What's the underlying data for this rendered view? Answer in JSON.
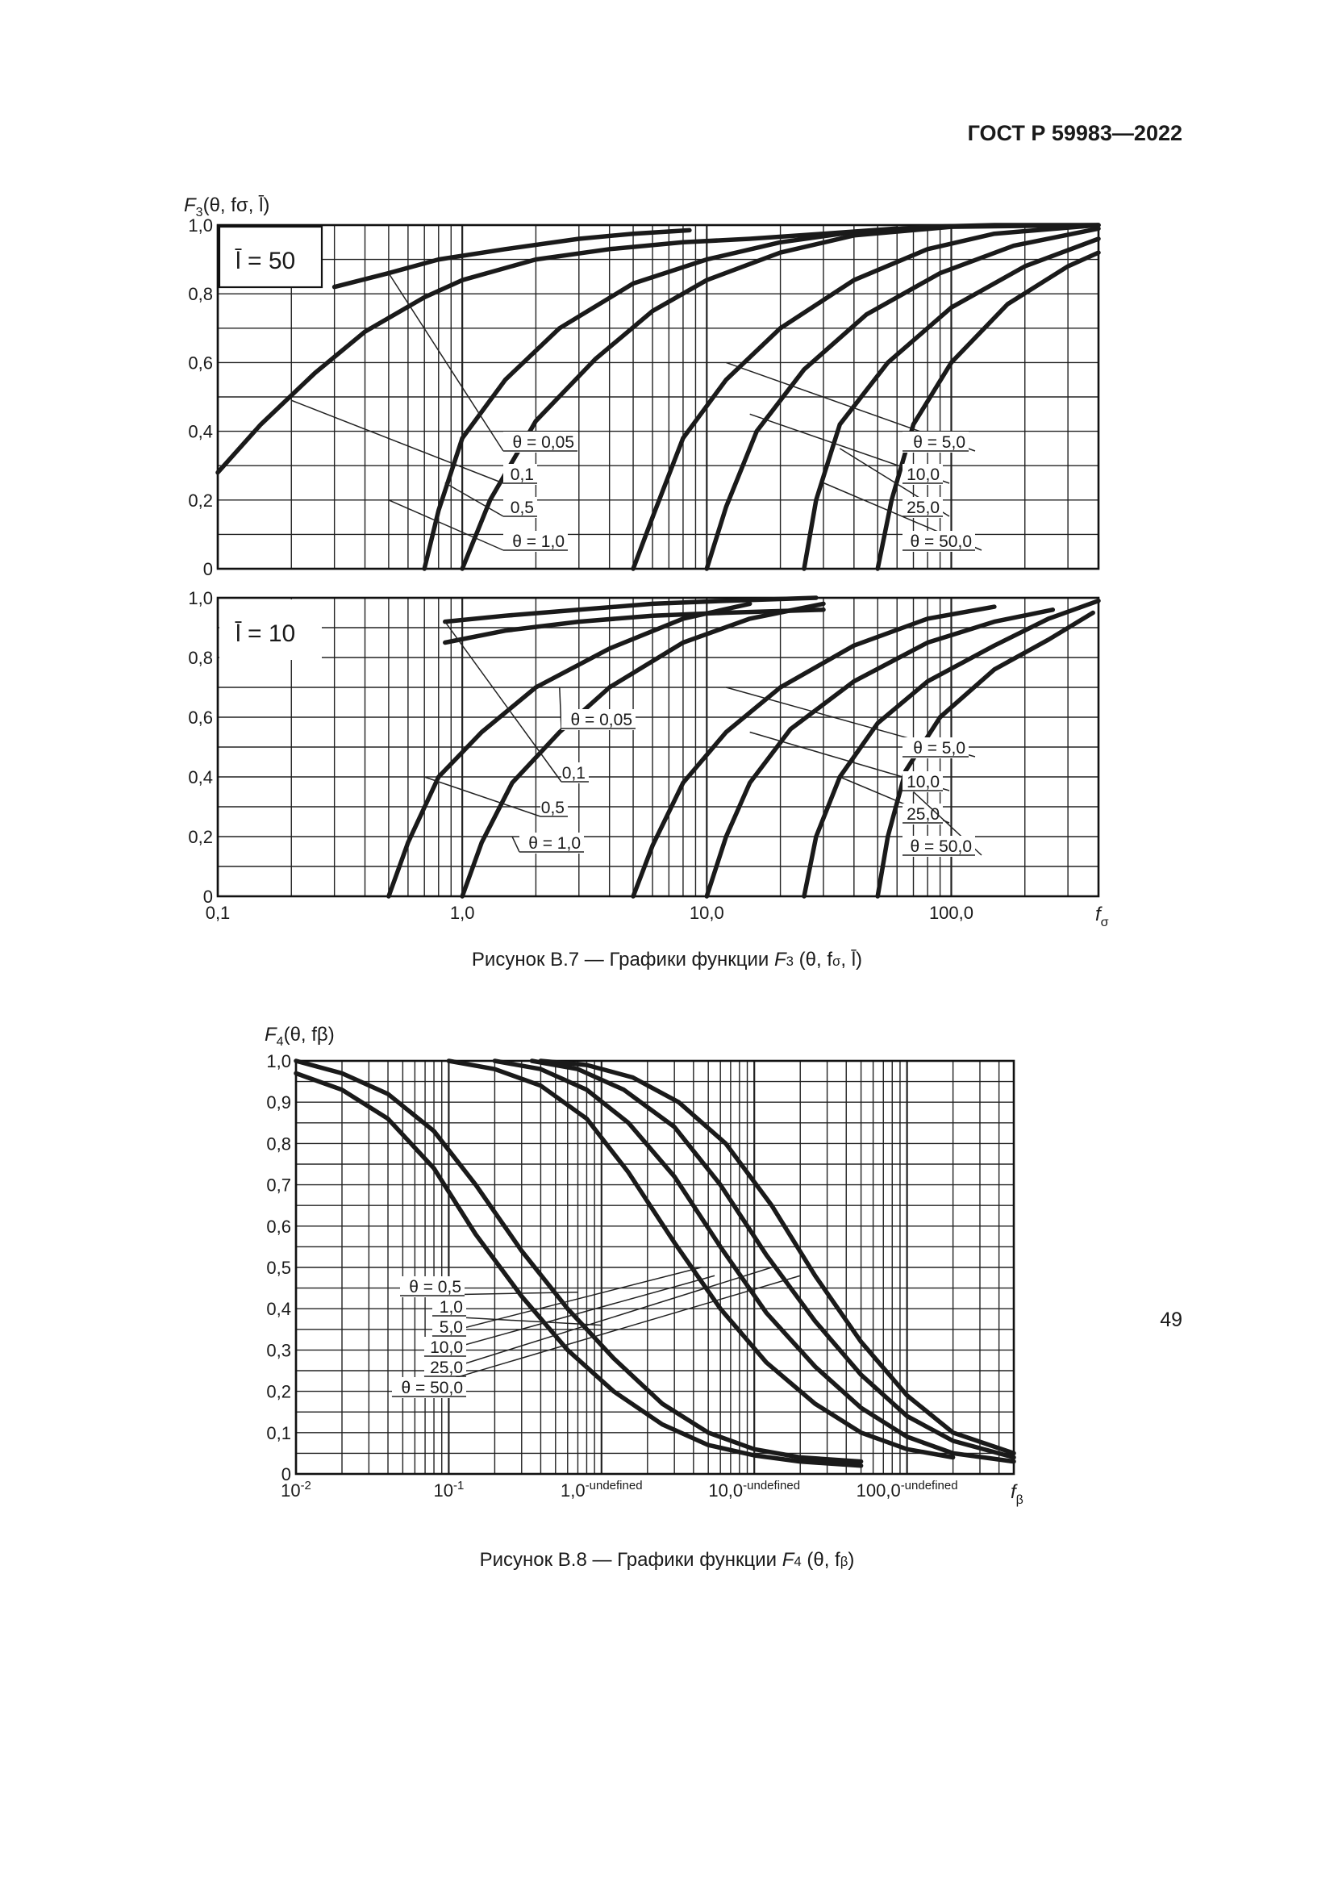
{
  "header": {
    "standard": "ГОСТ Р 59983—2022"
  },
  "page_number": "49",
  "figure_b7": {
    "caption_prefix": "Рисунок В.7 — Графики функции ",
    "caption_func": "F",
    "caption_sub": "3",
    "caption_args": " (θ, f",
    "caption_args_sub": "σ",
    "caption_args_end": ", l̄)"
  },
  "figure_b8": {
    "caption_prefix": "Рисунок В.8 — Графики функции ",
    "caption_func": "F",
    "caption_sub": "4",
    "caption_args": " (θ, f",
    "caption_args_sub": "β",
    "caption_args_end": ")"
  },
  "chart_data": [
    {
      "id": "F3_l50",
      "type": "line",
      "title": "",
      "panel_label": "l̄ = 50",
      "ylabel": "F3(θ, fσ, l̄)",
      "xlabel": "fσ",
      "x_scale": "log",
      "xlim": [
        0.1,
        400
      ],
      "ylim": [
        0,
        1.0
      ],
      "yticks": [
        "0",
        "0,2",
        "0,4",
        "0,6",
        "0,8",
        "1,0"
      ],
      "grid": true,
      "series": [
        {
          "name": "θ = 0,05",
          "x": [
            0.3,
            0.5,
            0.8,
            1.5,
            3,
            5,
            8.5
          ],
          "y": [
            0.82,
            0.86,
            0.9,
            0.93,
            0.96,
            0.975,
            0.985
          ]
        },
        {
          "name": "0,1",
          "x": [
            0.1,
            0.15,
            0.25,
            0.4,
            0.7,
            1.0,
            2,
            4,
            8,
            15,
            30,
            60
          ],
          "y": [
            0.28,
            0.42,
            0.57,
            0.69,
            0.79,
            0.84,
            0.9,
            0.93,
            0.95,
            0.96,
            0.975,
            0.99
          ]
        },
        {
          "name": "0,5",
          "x": [
            0.7,
            0.8,
            1.0,
            1.5,
            2.5,
            5,
            10,
            20,
            40,
            80,
            150,
            400
          ],
          "y": [
            0.0,
            0.17,
            0.38,
            0.55,
            0.7,
            0.83,
            0.9,
            0.95,
            0.98,
            0.995,
            1.0,
            1.0
          ]
        },
        {
          "name": "θ = 1,0",
          "x": [
            1.0,
            1.3,
            2.0,
            3.5,
            6,
            10,
            20,
            40,
            100,
            400
          ],
          "y": [
            0.0,
            0.2,
            0.43,
            0.61,
            0.75,
            0.84,
            0.92,
            0.97,
            0.995,
            1.0
          ]
        },
        {
          "name": "θ = 5,0",
          "x": [
            5.0,
            6.0,
            8.0,
            12,
            20,
            40,
            80,
            150,
            400
          ],
          "y": [
            0.0,
            0.15,
            0.38,
            0.55,
            0.7,
            0.84,
            0.93,
            0.975,
            1.0
          ]
        },
        {
          "name": "10,0",
          "x": [
            10.0,
            12.0,
            16,
            25,
            45,
            90,
            180,
            400
          ],
          "y": [
            0.0,
            0.18,
            0.4,
            0.58,
            0.74,
            0.86,
            0.94,
            0.99
          ]
        },
        {
          "name": "25,0",
          "x": [
            25.0,
            28.0,
            35,
            55,
            100,
            200,
            400
          ],
          "y": [
            0.0,
            0.2,
            0.42,
            0.6,
            0.76,
            0.88,
            0.96
          ]
        },
        {
          "name": "θ = 50,0",
          "x": [
            50.0,
            57.0,
            70,
            100,
            170,
            300,
            400
          ],
          "y": [
            0.0,
            0.2,
            0.42,
            0.6,
            0.77,
            0.88,
            0.92
          ]
        }
      ]
    },
    {
      "id": "F3_l10",
      "type": "line",
      "title": "",
      "panel_label": "l̄ = 10",
      "xlabel": "fσ",
      "x_scale": "log",
      "xlim": [
        0.1,
        400
      ],
      "ylim": [
        0,
        1.0
      ],
      "xticks": [
        "0,1",
        "1,0",
        "10,0",
        "100,0"
      ],
      "yticks": [
        "0",
        "0,2",
        "0,4",
        "0,6",
        "0,8",
        "1,0"
      ],
      "grid": true,
      "series": [
        {
          "name": "θ = 0,05",
          "x": [
            0.85,
            1.5,
            3,
            6,
            12,
            28
          ],
          "y": [
            0.92,
            0.94,
            0.96,
            0.98,
            0.99,
            1.0
          ]
        },
        {
          "name": "0,1",
          "x": [
            0.85,
            1.5,
            3,
            6,
            12,
            30
          ],
          "y": [
            0.85,
            0.89,
            0.92,
            0.94,
            0.95,
            0.96
          ]
        },
        {
          "name": "0,5",
          "x": [
            0.5,
            0.6,
            0.8,
            1.2,
            2,
            4,
            8,
            15
          ],
          "y": [
            0.0,
            0.18,
            0.4,
            0.55,
            0.7,
            0.83,
            0.93,
            0.98
          ]
        },
        {
          "name": "θ = 1,0",
          "x": [
            1.0,
            1.2,
            1.6,
            2.5,
            4,
            8,
            15,
            30
          ],
          "y": [
            0.0,
            0.18,
            0.38,
            0.55,
            0.7,
            0.85,
            0.93,
            0.98
          ]
        },
        {
          "name": "θ = 5,0",
          "x": [
            5.0,
            6.0,
            8.0,
            12,
            20,
            40,
            80,
            150
          ],
          "y": [
            0.0,
            0.17,
            0.38,
            0.55,
            0.7,
            0.84,
            0.93,
            0.97
          ]
        },
        {
          "name": "10,0",
          "x": [
            10.0,
            12.0,
            15,
            22,
            40,
            80,
            150,
            260
          ],
          "y": [
            0.0,
            0.2,
            0.38,
            0.56,
            0.72,
            0.85,
            0.92,
            0.96
          ]
        },
        {
          "name": "25,0",
          "x": [
            25.0,
            28.0,
            35,
            50,
            80,
            150,
            250,
            400
          ],
          "y": [
            0.0,
            0.2,
            0.4,
            0.58,
            0.72,
            0.84,
            0.93,
            0.99
          ]
        },
        {
          "name": "θ = 50,0",
          "x": [
            50.0,
            55.0,
            65,
            90,
            150,
            250,
            380
          ],
          "y": [
            0.0,
            0.2,
            0.42,
            0.6,
            0.76,
            0.86,
            0.95
          ]
        }
      ]
    },
    {
      "id": "F4",
      "type": "line",
      "title": "",
      "ylabel": "F4(θ, fβ)",
      "xlabel": "fβ",
      "x_scale": "log",
      "xlim": [
        0.01,
        500
      ],
      "ylim": [
        0,
        1.0
      ],
      "xticks": [
        "10-2",
        "10-1",
        "1,0",
        "10,0",
        "100,0"
      ],
      "yticks": [
        "0",
        "0,1",
        "0,2",
        "0,3",
        "0,4",
        "0,5",
        "0,6",
        "0,7",
        "0,8",
        "0,9",
        "1,0"
      ],
      "grid": true,
      "series": [
        {
          "name": "θ = 0,5",
          "x": [
            0.01,
            0.02,
            0.04,
            0.08,
            0.15,
            0.3,
            0.6,
            1.2,
            2.5,
            5,
            10,
            20,
            50
          ],
          "y": [
            0.97,
            0.93,
            0.86,
            0.74,
            0.58,
            0.43,
            0.3,
            0.2,
            0.12,
            0.07,
            0.045,
            0.03,
            0.02
          ]
        },
        {
          "name": "1,0",
          "x": [
            0.01,
            0.02,
            0.04,
            0.08,
            0.15,
            0.3,
            0.6,
            1.2,
            2.5,
            5,
            10,
            20,
            50
          ],
          "y": [
            1.0,
            0.97,
            0.92,
            0.83,
            0.7,
            0.54,
            0.4,
            0.28,
            0.17,
            0.1,
            0.06,
            0.04,
            0.03
          ]
        },
        {
          "name": "5,0",
          "x": [
            0.1,
            0.2,
            0.4,
            0.8,
            1.5,
            3,
            6,
            12,
            25,
            50,
            100,
            200
          ],
          "y": [
            1.0,
            0.98,
            0.94,
            0.86,
            0.73,
            0.56,
            0.4,
            0.27,
            0.17,
            0.1,
            0.06,
            0.04
          ]
        },
        {
          "name": "10,0",
          "x": [
            0.2,
            0.4,
            0.8,
            1.5,
            3,
            6,
            12,
            25,
            50,
            100,
            200,
            500
          ],
          "y": [
            1.0,
            0.98,
            0.93,
            0.85,
            0.72,
            0.55,
            0.39,
            0.26,
            0.16,
            0.09,
            0.05,
            0.03
          ]
        },
        {
          "name": "25,0",
          "x": [
            0.35,
            0.7,
            1.4,
            3,
            6,
            12,
            25,
            50,
            100,
            200,
            500
          ],
          "y": [
            1.0,
            0.98,
            0.93,
            0.84,
            0.7,
            0.53,
            0.37,
            0.24,
            0.14,
            0.08,
            0.04
          ]
        },
        {
          "name": "θ = 50,0",
          "x": [
            0.4,
            0.8,
            1.6,
            3.2,
            6.5,
            13,
            25,
            50,
            100,
            200,
            500
          ],
          "y": [
            1.0,
            0.99,
            0.96,
            0.9,
            0.8,
            0.65,
            0.48,
            0.32,
            0.19,
            0.1,
            0.05
          ]
        }
      ]
    }
  ]
}
